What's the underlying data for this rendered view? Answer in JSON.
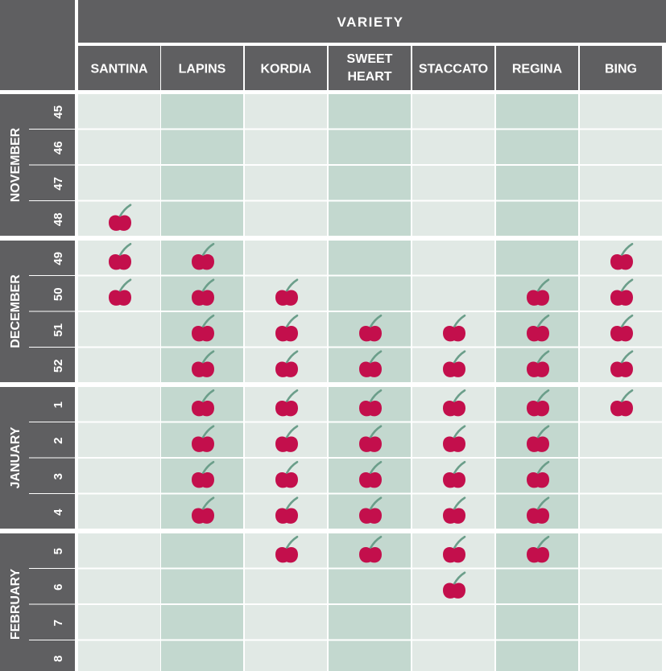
{
  "chart_data": {
    "type": "table",
    "title": "VARIETY",
    "varieties": [
      "SANTINA",
      "LAPINS",
      "KORDIA",
      "SWEET HEART",
      "STACCATO",
      "REGINA",
      "BING"
    ],
    "months": [
      {
        "name": "NOVEMBER",
        "weeks": [
          "45",
          "46",
          "47",
          "48"
        ]
      },
      {
        "name": "DECEMBER",
        "weeks": [
          "49",
          "50",
          "51",
          "52"
        ]
      },
      {
        "name": "JANUARY",
        "weeks": [
          "1",
          "2",
          "3",
          "4"
        ]
      },
      {
        "name": "FEBRUARY",
        "weeks": [
          "5",
          "6",
          "7",
          "8"
        ]
      }
    ],
    "availability": {
      "SANTINA": [
        "48",
        "49",
        "50"
      ],
      "LAPINS": [
        "49",
        "50",
        "51",
        "52",
        "1",
        "2",
        "3",
        "4"
      ],
      "KORDIA": [
        "50",
        "51",
        "52",
        "1",
        "2",
        "3",
        "4",
        "5"
      ],
      "SWEET HEART": [
        "51",
        "52",
        "1",
        "2",
        "3",
        "4",
        "5"
      ],
      "STACCATO": [
        "51",
        "52",
        "1",
        "2",
        "3",
        "4",
        "5",
        "6"
      ],
      "REGINA": [
        "50",
        "51",
        "52",
        "1",
        "2",
        "3",
        "4",
        "5"
      ],
      "BING": [
        "49",
        "50",
        "51",
        "52",
        "1"
      ]
    },
    "marker_icon": "cherry-icon",
    "colors": {
      "header_bg": "#5f5f61",
      "cell_light": "#e1e9e5",
      "cell_dark": "#c3d8cf",
      "cherry": "#c30f4c",
      "stem": "#6b9e8a",
      "grid_line": "#ffffff"
    }
  }
}
